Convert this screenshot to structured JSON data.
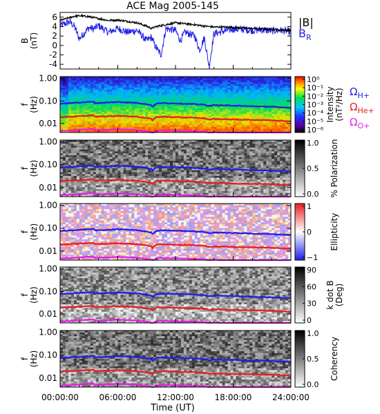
{
  "chart_data": {
    "type": "line",
    "title": "ACE Mag 2005-145",
    "xlabel": "Time (UT)",
    "x_ticks": [
      "00:00:00",
      "06:00:00",
      "12:00:00",
      "18:00:00",
      "24:00:00"
    ],
    "xlim_hours": [
      0,
      24
    ],
    "panels": [
      {
        "id": "b-field",
        "ylabel": "B",
        "yunit": "(nT)",
        "ylim": [
          -5,
          7
        ],
        "yticks": [
          "-4",
          "-2",
          "0",
          "2",
          "4",
          "6"
        ],
        "legend": {
          "total": "|B|",
          "radial_main": "B",
          "radial_sub": "R"
        },
        "series": [
          {
            "name": "|B|",
            "color": "#000000",
            "x": [
              0,
              0.5,
              1,
              1.5,
              2,
              3,
              4,
              5,
              6,
              7,
              8,
              9,
              9.5,
              10,
              11,
              12,
              13,
              14,
              15,
              16,
              17,
              18,
              19,
              20,
              21,
              22,
              23,
              24
            ],
            "y": [
              5.3,
              5.6,
              5.9,
              6.2,
              6.3,
              6.1,
              5.7,
              5.3,
              5.4,
              5.1,
              4.8,
              4.1,
              3.6,
              4.0,
              4.4,
              4.8,
              4.6,
              4.4,
              4.1,
              3.9,
              3.9,
              3.8,
              3.7,
              3.6,
              3.5,
              3.4,
              3.3,
              3.2
            ]
          },
          {
            "name": "B_R",
            "color": "#1e1ee6",
            "x": [
              0,
              0.5,
              1,
              1.5,
              2,
              3,
              3.5,
              4,
              5,
              6,
              7,
              8,
              9,
              9.5,
              9.8,
              10,
              10.5,
              11,
              12,
              12.5,
              13,
              14,
              14.5,
              15,
              15.5,
              16,
              17,
              18,
              19,
              20,
              21,
              22,
              23,
              24
            ],
            "y": [
              4.2,
              4.6,
              5.0,
              4.0,
              1.4,
              3.8,
              3.5,
              4.2,
              2.8,
              3.6,
              2.8,
              3.2,
              1.0,
              1.8,
              0.2,
              -0.5,
              -2.0,
              3.6,
              3.2,
              1.0,
              2.8,
              2.0,
              -1.0,
              1.6,
              -4.5,
              2.5,
              3.0,
              3.5,
              3.4,
              3.2,
              3.3,
              3.1,
              3.2,
              2.9
            ]
          }
        ]
      },
      {
        "id": "intensity",
        "ylabel": "f",
        "yunit": "(Hz)",
        "yscale": "log",
        "ylim": [
          0.004,
          1.2
        ],
        "yticks": [
          "1.00",
          "0.10",
          "0.01"
        ],
        "colorbar": {
          "label_line1": "Intensity",
          "label_line2": "(nT²/Hz)",
          "ticks": [
            "10⁰",
            "10⁻¹",
            "10⁻²",
            "10⁻³",
            "10⁻⁴",
            "10⁻⁵",
            "10⁻⁶"
          ]
        },
        "legend": [
          {
            "main": "Ω",
            "sub": "H+",
            "color": "#1e1ee6"
          },
          {
            "main": "Ω",
            "sub": "He+",
            "color": "#e61e1e"
          },
          {
            "main": "Ω",
            "sub": "O+",
            "color": "#e61ee6"
          }
        ]
      },
      {
        "id": "polarization",
        "ylabel": "f",
        "yunit": "(Hz)",
        "yscale": "log",
        "ylim": [
          0.004,
          1.2
        ],
        "yticks": [
          "1.00",
          "0.10",
          "0.01"
        ],
        "colorbar": {
          "label_line1": "% Polarization",
          "ticks": [
            "1.0",
            "0.5",
            "0.0"
          ]
        }
      },
      {
        "id": "ellipticity",
        "ylabel": "f",
        "yunit": "(Hz)",
        "yscale": "log",
        "ylim": [
          0.004,
          1.2
        ],
        "yticks": [
          "1.00",
          "0.10",
          "0.01"
        ],
        "colorbar": {
          "label_line1": "Ellipticity",
          "ticks": [
            "1",
            "0",
            "−1"
          ]
        }
      },
      {
        "id": "kdotb",
        "ylabel": "f",
        "yunit": "(Hz)",
        "yscale": "log",
        "ylim": [
          0.004,
          1.2
        ],
        "yticks": [
          "1.00",
          "0.10",
          "0.01"
        ],
        "colorbar": {
          "label_line1": "k dot B",
          "label_line2": "(Deg)",
          "ticks": [
            "90",
            "60",
            "30",
            "0"
          ]
        }
      },
      {
        "id": "coherency",
        "ylabel": "f",
        "yunit": "(Hz)",
        "yscale": "log",
        "ylim": [
          0.004,
          1.2
        ],
        "yticks": [
          "1.00",
          "0.10",
          "0.01"
        ],
        "colorbar": {
          "label_line1": "Coherency",
          "ticks": [
            "1.0",
            "0.5",
            "0.0"
          ]
        }
      }
    ],
    "gyrofrequency_lines": {
      "x": [
        0,
        2,
        3.5,
        3.6,
        5,
        6,
        8,
        9.5,
        9.6,
        10,
        10.5,
        12,
        14,
        15,
        15.5,
        16,
        18,
        20,
        22,
        24
      ],
      "H+": [
        0.075,
        0.085,
        0.093,
        0.08,
        0.085,
        0.09,
        0.082,
        0.065,
        0.055,
        0.075,
        0.08,
        0.078,
        0.072,
        0.068,
        0.06,
        0.065,
        0.062,
        0.058,
        0.055,
        0.05
      ],
      "He+": [
        0.019,
        0.021,
        0.023,
        0.02,
        0.021,
        0.022,
        0.02,
        0.016,
        0.014,
        0.019,
        0.02,
        0.019,
        0.018,
        0.017,
        0.015,
        0.016,
        0.015,
        0.0145,
        0.014,
        0.0125
      ],
      "O+": [
        0.0046,
        0.0052,
        0.0058,
        0.005,
        0.0053,
        0.0056,
        0.0051,
        0.0041,
        0.0036,
        0.0047,
        0.005,
        0.0048,
        0.0045,
        0.0043,
        0.0038,
        0.0041,
        0.0039,
        0.0037,
        0.0035,
        0.0032
      ]
    }
  }
}
